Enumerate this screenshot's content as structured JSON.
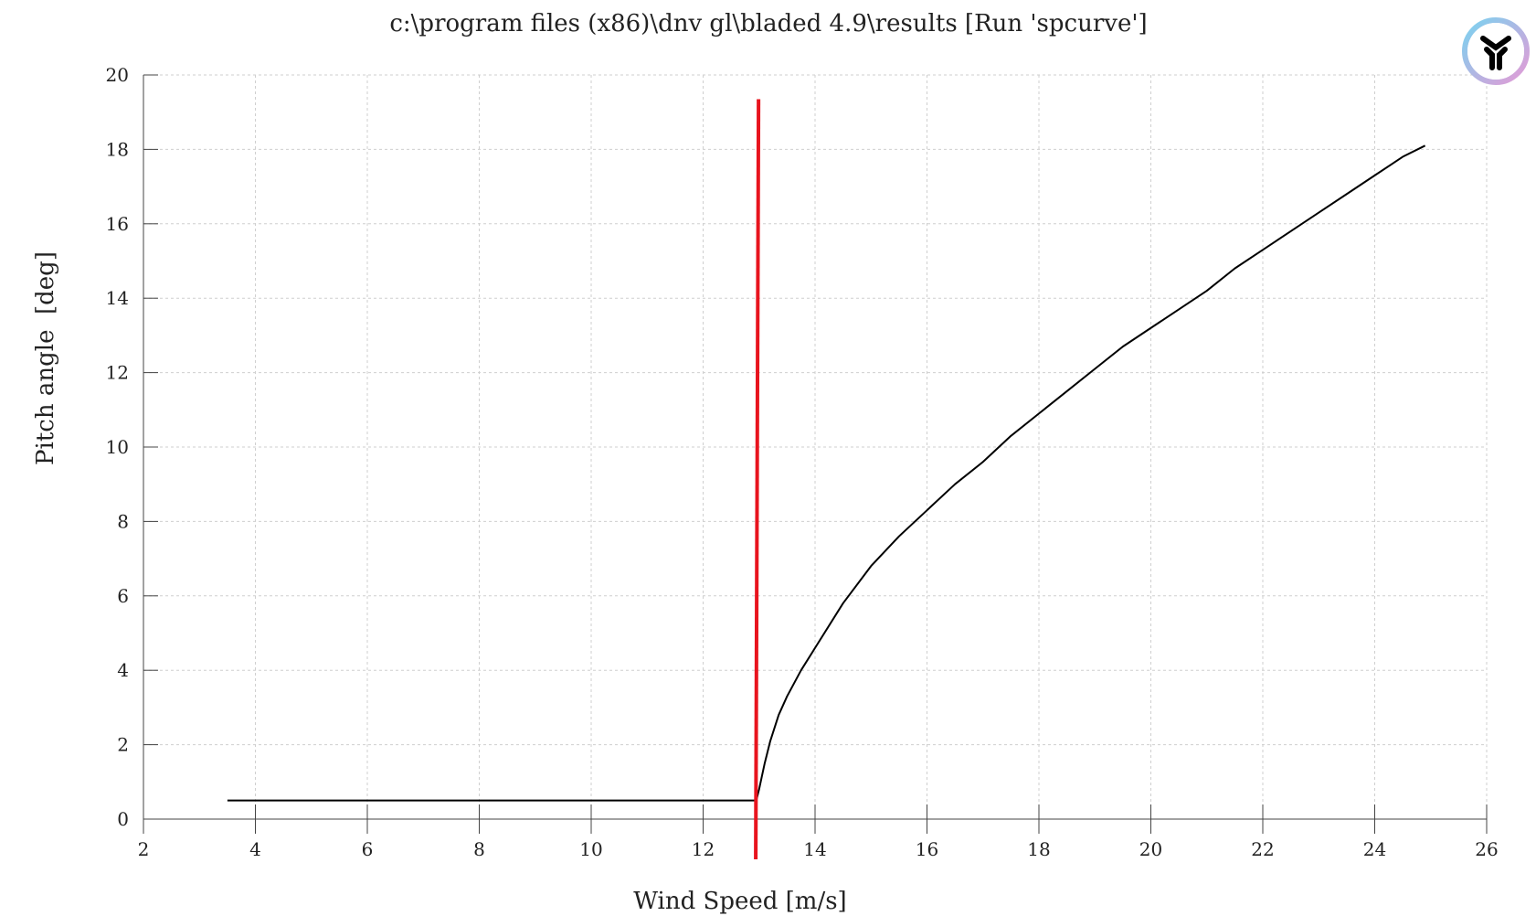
{
  "chart_data": {
    "type": "line",
    "title": "c:\\program files (x86)\\dnv gl\\bladed 4.9\\results [Run 'spcurve']",
    "xlabel": "Wind Speed [m/s]",
    "ylabel": "Pitch angle  [deg]",
    "xlim": [
      2,
      26
    ],
    "ylim": [
      0,
      20
    ],
    "xticks": [
      "2",
      "4",
      "6",
      "8",
      "10",
      "12",
      "14",
      "16",
      "18",
      "20",
      "22",
      "24",
      "26"
    ],
    "yticks": [
      "0",
      "2",
      "4",
      "6",
      "8",
      "10",
      "12",
      "14",
      "16",
      "18",
      "20"
    ],
    "grid": true,
    "series": [
      {
        "color": "#000000",
        "x": [
          3.5,
          12.95,
          13.0,
          13.1,
          13.2,
          13.35,
          13.5,
          13.75,
          14.0,
          14.5,
          15.0,
          15.5,
          16.0,
          16.5,
          17.0,
          17.5,
          18.0,
          18.5,
          19.0,
          19.5,
          20.0,
          20.5,
          21.0,
          21.5,
          22.0,
          22.5,
          23.0,
          23.5,
          24.0,
          24.5,
          24.9
        ],
        "y": [
          0.5,
          0.5,
          0.8,
          1.5,
          2.1,
          2.8,
          3.3,
          4.0,
          4.6,
          5.8,
          6.8,
          7.6,
          8.3,
          9.0,
          9.6,
          10.3,
          10.9,
          11.5,
          12.1,
          12.7,
          13.2,
          13.7,
          14.2,
          14.8,
          15.3,
          15.8,
          16.3,
          16.8,
          17.3,
          17.8,
          18.1
        ]
      },
      {
        "color": "#e8141e",
        "x": [
          12.94,
          12.99
        ],
        "y": [
          -1.08,
          19.35
        ]
      }
    ]
  },
  "logo": {
    "icon": "y-logo-icon",
    "colors": [
      "#7ad3f0",
      "#e49ad6"
    ]
  }
}
